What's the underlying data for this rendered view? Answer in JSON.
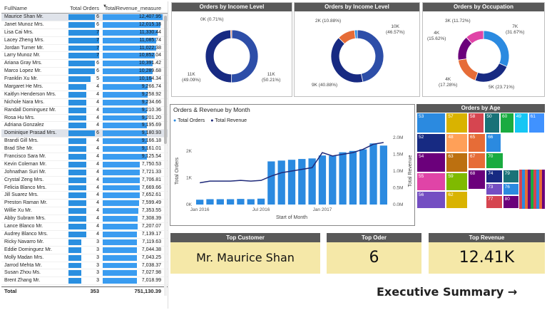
{
  "table": {
    "headers": {
      "name": "FullName",
      "orders": "Total Orders",
      "revenue": "TotalRevenue_measure"
    },
    "max_orders": 7,
    "max_revenue": 12407.95,
    "rows": [
      {
        "name": "Maurice Shan Mr.",
        "orders": 6,
        "revenue": "12,407.95",
        "rev": 12407.95,
        "selected": true
      },
      {
        "name": "Janet Munoz Mrs.",
        "orders": 6,
        "revenue": "12,015.18",
        "rev": 12015.18
      },
      {
        "name": "Lisa Cai Mrs.",
        "orders": 7,
        "revenue": "11,330.44",
        "rev": 11330.44
      },
      {
        "name": "Lacey Zheng Mrs.",
        "orders": 7,
        "revenue": "11,085.74",
        "rev": 11085.74
      },
      {
        "name": "Jordan Turner Mr.",
        "orders": 7,
        "revenue": "11,022.38",
        "rev": 11022.38
      },
      {
        "name": "Larry Munoz Mr.",
        "orders": 7,
        "revenue": "10,852.04",
        "rev": 10852.04
      },
      {
        "name": "Ariana Gray Mrs.",
        "orders": 6,
        "revenue": "10,391.42",
        "rev": 10391.42
      },
      {
        "name": "Marco Lopez Mr.",
        "orders": 6,
        "revenue": "10,289.68",
        "rev": 10289.68
      },
      {
        "name": "Franklin Xu Mr.",
        "orders": 5,
        "revenue": "10,164.34",
        "rev": 10164.34
      },
      {
        "name": "Margaret He Mrs.",
        "orders": 4,
        "revenue": "9,266.74",
        "rev": 9266.74
      },
      {
        "name": "Kaitlyn Henderson Mrs.",
        "orders": 4,
        "revenue": "9,258.92",
        "rev": 9258.92
      },
      {
        "name": "Nichole Nara Mrs.",
        "orders": 4,
        "revenue": "9,234.66",
        "rev": 9234.66
      },
      {
        "name": "Randall Dominguez Mr.",
        "orders": 4,
        "revenue": "9,210.36",
        "rev": 9210.36
      },
      {
        "name": "Rosa Hu Mrs.",
        "orders": 4,
        "revenue": "9,201.20",
        "rev": 9201.2
      },
      {
        "name": "Adriana Gonzalez",
        "orders": 4,
        "revenue": "9,195.69",
        "rev": 9195.69
      },
      {
        "name": "Dominique Prasad Mrs.",
        "orders": 6,
        "revenue": "9,180.93",
        "rev": 9180.93,
        "selected": true
      },
      {
        "name": "Brandi Gill Mrs.",
        "orders": 4,
        "revenue": "9,166.18",
        "rev": 9166.18
      },
      {
        "name": "Brad She Mr.",
        "orders": 4,
        "revenue": "9,161.01",
        "rev": 9161.01
      },
      {
        "name": "Francisco Sara Mr.",
        "orders": 4,
        "revenue": "9,125.54",
        "rev": 9125.54
      },
      {
        "name": "Kevin Coleman Mr.",
        "orders": 4,
        "revenue": "7,750.53",
        "rev": 7750.53
      },
      {
        "name": "Johnathan Suri Mr.",
        "orders": 4,
        "revenue": "7,721.33",
        "rev": 7721.33
      },
      {
        "name": "Crystal Zeng Mrs.",
        "orders": 4,
        "revenue": "7,706.81",
        "rev": 7706.81
      },
      {
        "name": "Felicia Blanco Mrs.",
        "orders": 4,
        "revenue": "7,669.66",
        "rev": 7669.66
      },
      {
        "name": "Jill Suarez Mrs.",
        "orders": 4,
        "revenue": "7,652.61",
        "rev": 7652.61
      },
      {
        "name": "Preston Raman Mr.",
        "orders": 4,
        "revenue": "7,599.49",
        "rev": 7599.49
      },
      {
        "name": "Willie Xu Mr.",
        "orders": 4,
        "revenue": "7,353.55",
        "rev": 7353.55
      },
      {
        "name": "Abby Subram Mrs.",
        "orders": 4,
        "revenue": "7,308.39",
        "rev": 7308.39
      },
      {
        "name": "Lance Blanco Mr.",
        "orders": 4,
        "revenue": "7,207.07",
        "rev": 7207.07
      },
      {
        "name": "Audrey Blanco Mrs.",
        "orders": 4,
        "revenue": "7,139.17",
        "rev": 7139.17
      },
      {
        "name": "Ricky Navarro Mr.",
        "orders": 3,
        "revenue": "7,119.63",
        "rev": 7119.63
      },
      {
        "name": "Eddie Dominguez Mr.",
        "orders": 3,
        "revenue": "7,044.38",
        "rev": 7044.38
      },
      {
        "name": "Molly Madan Mrs.",
        "orders": 3,
        "revenue": "7,043.25",
        "rev": 7043.25
      },
      {
        "name": "Jarrod Mehta Mr.",
        "orders": 3,
        "revenue": "7,038.37",
        "rev": 7038.37
      },
      {
        "name": "Susan Zhou Ms.",
        "orders": 3,
        "revenue": "7,027.98",
        "rev": 7027.98
      },
      {
        "name": "Brent Zhang Mr.",
        "orders": 3,
        "revenue": "7,018.99",
        "rev": 7018.99
      }
    ],
    "total": {
      "label": "Total",
      "orders": "353",
      "revenue": "751,130.39"
    }
  },
  "donut1": {
    "title": "Orders by Income Level",
    "slices": [
      {
        "label": "11K",
        "pct": "(50.21%)",
        "value": 50.21,
        "color": "#2d4ea8"
      },
      {
        "label": "11K",
        "pct": "(49.09%)",
        "value": 49.09,
        "color": "#172a82"
      },
      {
        "label": "0K",
        "pct": "(0.71%)",
        "value": 0.71,
        "color": "#e66c37"
      }
    ]
  },
  "donut2": {
    "title": "Orders by Income Level",
    "slices": [
      {
        "label": "10K",
        "pct": "(46.57%)",
        "value": 46.57,
        "color": "#2d4ea8"
      },
      {
        "label": "9K",
        "pct": "(40.88%)",
        "value": 40.88,
        "color": "#172a82"
      },
      {
        "label": "2K",
        "pct": "(10.88%)",
        "value": 10.88,
        "color": "#e66c37"
      },
      {
        "label": "",
        "pct": "",
        "value": 1.67,
        "color": "#2b8ae0"
      }
    ]
  },
  "donut3": {
    "title": "Orders by Occupation",
    "slices": [
      {
        "label": "7K",
        "pct": "(31.67%)",
        "value": 31.67,
        "color": "#2b8ae0"
      },
      {
        "label": "5K",
        "pct": "(23.71%)",
        "value": 23.71,
        "color": "#172a82"
      },
      {
        "label": "4K",
        "pct": "(17.28%)",
        "value": 17.28,
        "color": "#e66c37"
      },
      {
        "label": "4K",
        "pct": "(15.62%)",
        "value": 15.62,
        "color": "#6b007b"
      },
      {
        "label": "3K",
        "pct": "(11.72%)",
        "value": 11.72,
        "color": "#e044a7"
      }
    ]
  },
  "line_chart": {
    "title": "Orders & Revenue by Month",
    "legend": [
      {
        "name": "Total Orders",
        "color": "#2b8ae0"
      },
      {
        "name": "Total Revenue",
        "color": "#1f2a7a"
      }
    ],
    "xlabel": "Start of Month",
    "ylabel_left": "Total Orders",
    "ylabel_right": "Total Revenue",
    "x_ticks": [
      "Jan 2016",
      "Jul 2016",
      "Jan 2017"
    ],
    "y_left_ticks": [
      "0K",
      "1K",
      "2K"
    ],
    "y_right_ticks": [
      "0.0M",
      "0.5M",
      "1.0M",
      "1.5M",
      "2.0M"
    ]
  },
  "chart_data": {
    "type": "bar",
    "categories": [
      "2016-01",
      "2016-02",
      "2016-03",
      "2016-04",
      "2016-05",
      "2016-06",
      "2016-07",
      "2016-08",
      "2016-09",
      "2016-10",
      "2016-11",
      "2016-12",
      "2017-01",
      "2017-02",
      "2017-03",
      "2017-04",
      "2017-05",
      "2017-06",
      "2017-07"
    ],
    "series": [
      {
        "name": "Total Orders",
        "type": "bar",
        "values": [
          180,
          200,
          200,
          200,
          210,
          200,
          220,
          1610,
          1640,
          1670,
          1700,
          1720,
          1830,
          1820,
          1950,
          2000,
          2060,
          2280,
          2200
        ]
      },
      {
        "name": "Total Revenue",
        "type": "line",
        "values": [
          0.65,
          0.7,
          0.7,
          0.7,
          0.72,
          0.7,
          0.72,
          0.85,
          0.95,
          1.0,
          1.05,
          1.1,
          1.55,
          1.45,
          1.5,
          1.55,
          1.65,
          1.8,
          1.85
        ]
      }
    ],
    "ylim_left": [
      0,
      2500
    ],
    "ylim_right": [
      0,
      2.0
    ]
  },
  "treemap": {
    "title": "Orders by Age",
    "cells": [
      {
        "label": "53",
        "color": "#2b8ae0"
      },
      {
        "label": "52",
        "color": "#172a82"
      },
      {
        "label": "54",
        "color": "#6b007b"
      },
      {
        "label": "55",
        "color": "#e044a7"
      },
      {
        "label": "56",
        "color": "#744ec2"
      },
      {
        "label": "57",
        "color": "#d9b300"
      },
      {
        "label": "58",
        "color": "#d64550"
      },
      {
        "label": "50",
        "color": "#197278"
      },
      {
        "label": "60",
        "color": "#1aab40"
      },
      {
        "label": "49",
        "color": "#15c6f4"
      },
      {
        "label": "61",
        "color": "#4092ff"
      },
      {
        "label": "48",
        "color": "#ffa058"
      },
      {
        "label": "63",
        "color": "#bc7010"
      },
      {
        "label": "59",
        "color": "#7fba00"
      },
      {
        "label": "62",
        "color": "#d9b300"
      },
      {
        "label": "65",
        "color": "#e66c37"
      },
      {
        "label": "66",
        "color": "#2b8ae0"
      },
      {
        "label": "67",
        "color": "#e66c37"
      },
      {
        "label": "68",
        "color": "#6b007b"
      },
      {
        "label": "70",
        "color": "#1aab40"
      },
      {
        "label": "74",
        "color": "#172a82"
      },
      {
        "label": "73",
        "color": "#744ec2"
      },
      {
        "label": "79",
        "color": "#197278"
      },
      {
        "label": "77",
        "color": "#d64550"
      },
      {
        "label": "76",
        "color": "#2b8ae0"
      },
      {
        "label": "80",
        "color": "#6b007b"
      }
    ]
  },
  "kpis": [
    {
      "title": "Top Customer",
      "value": "Mr. Maurice Shan"
    },
    {
      "title": "Top Oder",
      "value": "6"
    },
    {
      "title": "Top Revenue",
      "value": "12.41K"
    }
  ],
  "exec_summary": "Executive Summary →"
}
